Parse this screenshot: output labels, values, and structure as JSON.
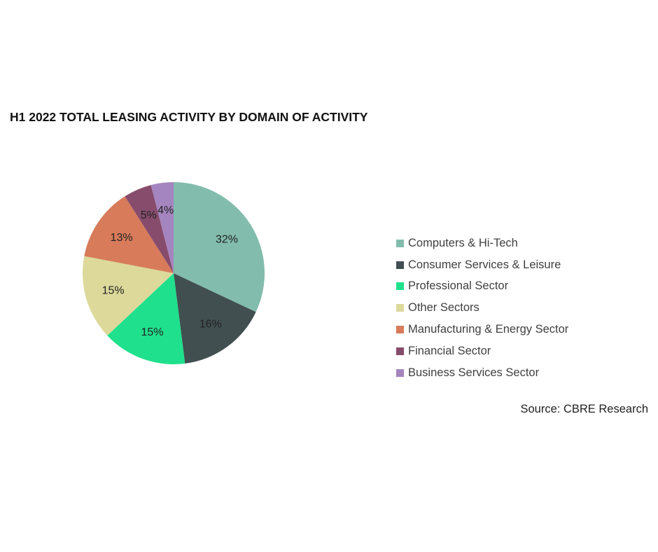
{
  "chart_data": {
    "type": "pie",
    "title": "H1 2022 TOTAL LEASING ACTIVITY BY DOMAIN OF ACTIVITY",
    "categories": [
      "Computers & Hi-Tech",
      "Consumer Services & Leisure",
      "Professional Sector",
      "Other Sectors",
      "Manufacturing & Energy Sector",
      "Financial Sector",
      "Business Services Sector"
    ],
    "values": [
      32,
      16,
      15,
      15,
      13,
      5,
      4
    ],
    "value_labels": [
      "32%",
      "16%",
      "15%",
      "15%",
      "13%",
      "5%",
      "4%"
    ],
    "colors": [
      "#82bcac",
      "#414f50",
      "#1fe08c",
      "#dcd99b",
      "#d77b5a",
      "#874c6c",
      "#a585bf"
    ],
    "legend_position": "right",
    "source": "Source: CBRE Research"
  }
}
